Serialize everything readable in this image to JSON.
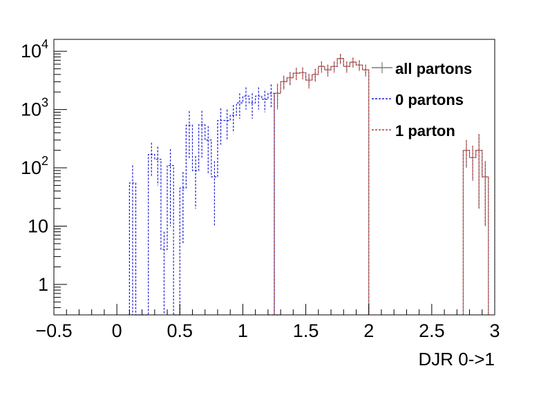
{
  "chart_data": {
    "type": "histogram",
    "xlabel": "DJR 0->1",
    "ylabel": "",
    "xlim": [
      -0.5,
      3
    ],
    "ylim": [
      0.3,
      16000
    ],
    "yscale": "log",
    "x_ticks": [
      {
        "value": -0.5,
        "label": "−0.5"
      },
      {
        "value": 0,
        "label": "0"
      },
      {
        "value": 0.5,
        "label": "0.5"
      },
      {
        "value": 1,
        "label": "1"
      },
      {
        "value": 1.5,
        "label": "1.5"
      },
      {
        "value": 2,
        "label": "2"
      },
      {
        "value": 2.5,
        "label": "2.5"
      },
      {
        "value": 3,
        "label": "3"
      }
    ],
    "y_ticks": [
      {
        "value": 1,
        "base": "1",
        "exp": ""
      },
      {
        "value": 10,
        "base": "10",
        "exp": ""
      },
      {
        "value": 100,
        "base": "10",
        "exp": "2"
      },
      {
        "value": 1000,
        "base": "10",
        "exp": "3"
      },
      {
        "value": 10000,
        "base": "10",
        "exp": "4"
      }
    ],
    "bin_width": 0.05,
    "grid": false,
    "legend_position": "top-right",
    "series": [
      {
        "name": "all partons",
        "color": "#7a7a7a",
        "style": "solid",
        "bins": [
          [
            1.25,
            1.3,
            1900,
            900
          ],
          [
            1.3,
            1.35,
            3000,
            800
          ],
          [
            1.35,
            1.4,
            3500,
            900
          ],
          [
            1.4,
            1.45,
            4200,
            1000
          ],
          [
            1.45,
            1.5,
            4300,
            1000
          ],
          [
            1.5,
            1.55,
            3200,
            900
          ],
          [
            1.55,
            1.6,
            4000,
            1000
          ],
          [
            1.6,
            1.65,
            5500,
            1200
          ],
          [
            1.65,
            1.7,
            4800,
            1100
          ],
          [
            1.7,
            1.75,
            5500,
            1200
          ],
          [
            1.75,
            1.8,
            7500,
            1500
          ],
          [
            1.8,
            1.85,
            5500,
            1200
          ],
          [
            1.85,
            1.9,
            6500,
            1300
          ],
          [
            1.9,
            1.95,
            5800,
            1200
          ],
          [
            1.95,
            2.0,
            4800,
            1100
          ],
          [
            2.75,
            2.8,
            200,
            100
          ],
          [
            2.8,
            2.85,
            150,
            90
          ],
          [
            2.85,
            2.9,
            200,
            180
          ],
          [
            2.9,
            2.95,
            70,
            60
          ]
        ]
      },
      {
        "name": "0 partons",
        "color": "#1a1ad6",
        "style": "dashed",
        "bins": [
          [
            0.1,
            0.15,
            55,
            55
          ],
          [
            0.15,
            0.2,
            0.3,
            0
          ],
          [
            0.2,
            0.25,
            0.3,
            0
          ],
          [
            0.25,
            0.3,
            170,
            100
          ],
          [
            0.3,
            0.35,
            140,
            90
          ],
          [
            0.35,
            0.4,
            4,
            4
          ],
          [
            0.4,
            0.45,
            110,
            100
          ],
          [
            0.45,
            0.5,
            0.3,
            0
          ],
          [
            0.5,
            0.55,
            45,
            40
          ],
          [
            0.55,
            0.6,
            540,
            400
          ],
          [
            0.6,
            0.65,
            90,
            70
          ],
          [
            0.65,
            0.7,
            550,
            400
          ],
          [
            0.7,
            0.75,
            300,
            220
          ],
          [
            0.75,
            0.8,
            70,
            60
          ],
          [
            0.8,
            0.85,
            650,
            400
          ],
          [
            0.85,
            0.9,
            650,
            350
          ],
          [
            0.9,
            0.95,
            800,
            400
          ],
          [
            0.95,
            1.0,
            1300,
            600
          ],
          [
            1.0,
            1.05,
            1700,
            700
          ],
          [
            1.05,
            1.1,
            1300,
            600
          ],
          [
            1.1,
            1.15,
            1700,
            700
          ],
          [
            1.15,
            1.2,
            1500,
            600
          ],
          [
            1.2,
            1.25,
            1900,
            800
          ],
          [
            1.25,
            1.3,
            0.3,
            0
          ]
        ]
      },
      {
        "name": "1 parton",
        "color": "#c43a3a",
        "style": "dashed",
        "bins": [
          [
            1.2,
            1.25,
            0.3,
            0
          ],
          [
            1.25,
            1.3,
            1900,
            800
          ],
          [
            1.3,
            1.35,
            3000,
            800
          ],
          [
            1.35,
            1.4,
            3500,
            900
          ],
          [
            1.4,
            1.45,
            4200,
            1000
          ],
          [
            1.45,
            1.5,
            4300,
            1000
          ],
          [
            1.5,
            1.55,
            3200,
            900
          ],
          [
            1.55,
            1.6,
            4000,
            1000
          ],
          [
            1.6,
            1.65,
            5500,
            1200
          ],
          [
            1.65,
            1.7,
            4800,
            1100
          ],
          [
            1.7,
            1.75,
            5500,
            1200
          ],
          [
            1.75,
            1.8,
            7500,
            1500
          ],
          [
            1.8,
            1.85,
            5500,
            1200
          ],
          [
            1.85,
            1.9,
            6500,
            1300
          ],
          [
            1.9,
            1.95,
            5800,
            1200
          ],
          [
            1.95,
            2.0,
            4800,
            1100
          ],
          [
            2.75,
            2.8,
            200,
            100
          ],
          [
            2.8,
            2.85,
            150,
            90
          ],
          [
            2.85,
            2.9,
            200,
            180
          ],
          [
            2.9,
            2.95,
            70,
            60
          ]
        ]
      }
    ],
    "legend": [
      {
        "label": "all partons",
        "color": "#7a7a7a",
        "style": "solid"
      },
      {
        "label": "0 partons",
        "color": "#1a1ad6",
        "style": "dashed"
      },
      {
        "label": "1 parton",
        "color": "#c43a3a",
        "style": "dashed"
      }
    ]
  }
}
